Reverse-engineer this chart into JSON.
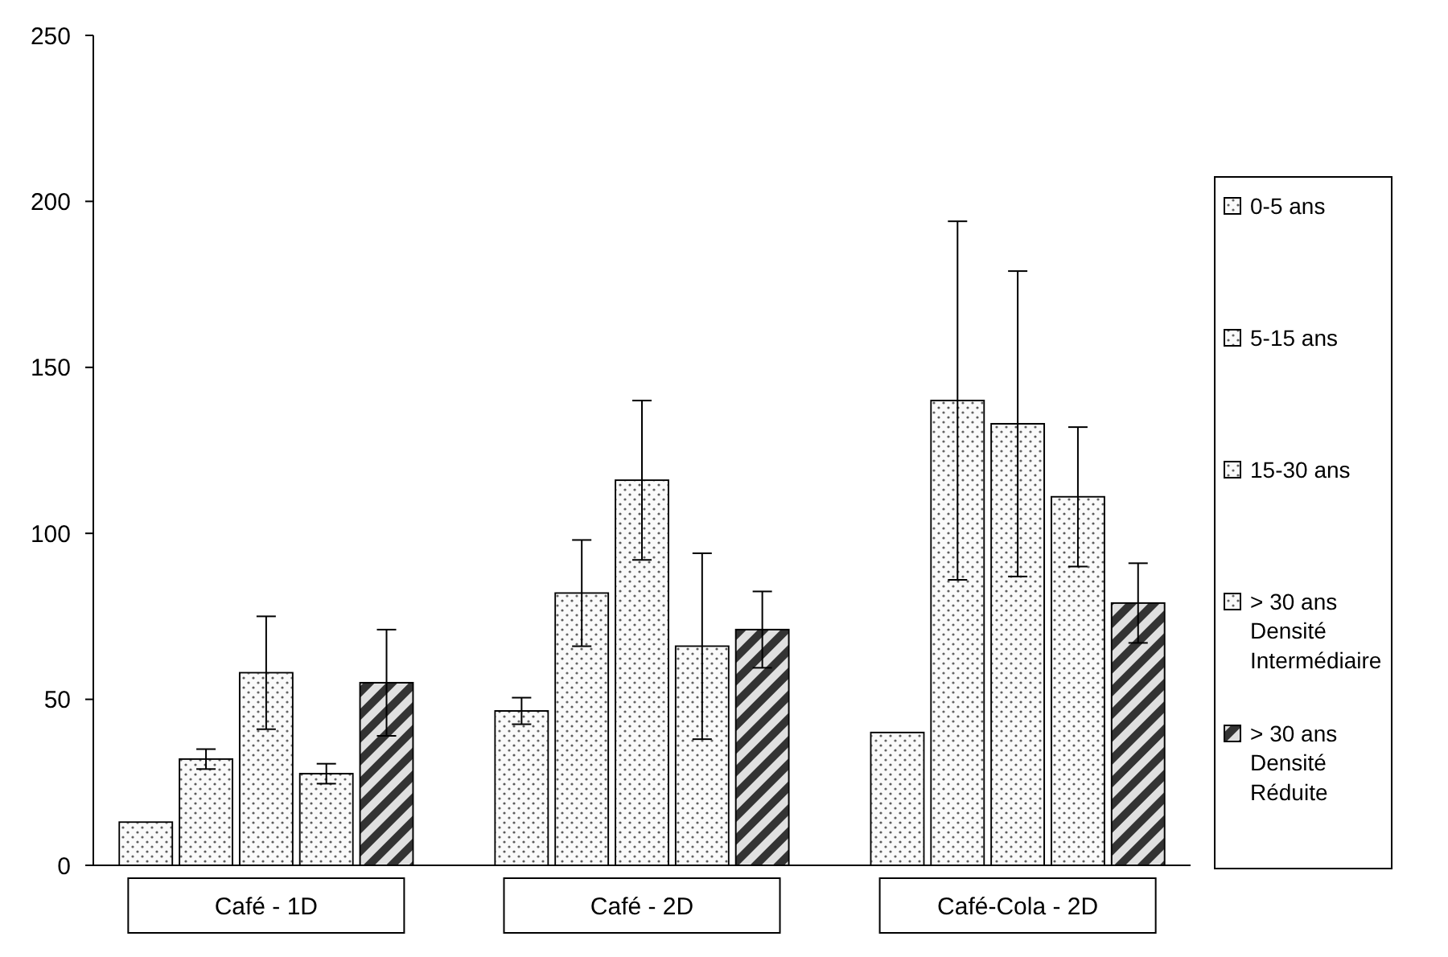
{
  "chart_data": {
    "type": "bar",
    "categories": [
      "Café - 1D",
      "Café - 2D",
      "Café-Cola - 2D"
    ],
    "series": [
      {
        "name": "0-5 ans",
        "color": "#e0e0e0",
        "values": [
          13,
          46.5,
          40
        ],
        "errors": [
          null,
          4,
          null
        ]
      },
      {
        "name": "5-15 ans",
        "color": "#e0e0e0",
        "values": [
          32,
          82,
          140
        ],
        "errors": [
          3,
          16,
          54
        ]
      },
      {
        "name": "15-30 ans",
        "color": "#e0e0e0",
        "values": [
          58,
          116,
          133
        ],
        "errors": [
          17,
          24,
          46
        ]
      },
      {
        "name": "> 30 ans Densité Intermédiaire",
        "color": "#e0e0e0",
        "values": [
          27.6,
          66,
          111
        ],
        "errors": [
          3,
          28,
          21
        ]
      },
      {
        "name": "> 30 ans Densité Réduite",
        "color": "#333333",
        "values": [
          55,
          71,
          79
        ],
        "errors": [
          16,
          11.5,
          12
        ]
      }
    ],
    "ylim": [
      0,
      250
    ],
    "yticks": [
      0,
      50,
      100,
      150,
      200,
      250
    ],
    "grid": false,
    "legend": "right"
  }
}
